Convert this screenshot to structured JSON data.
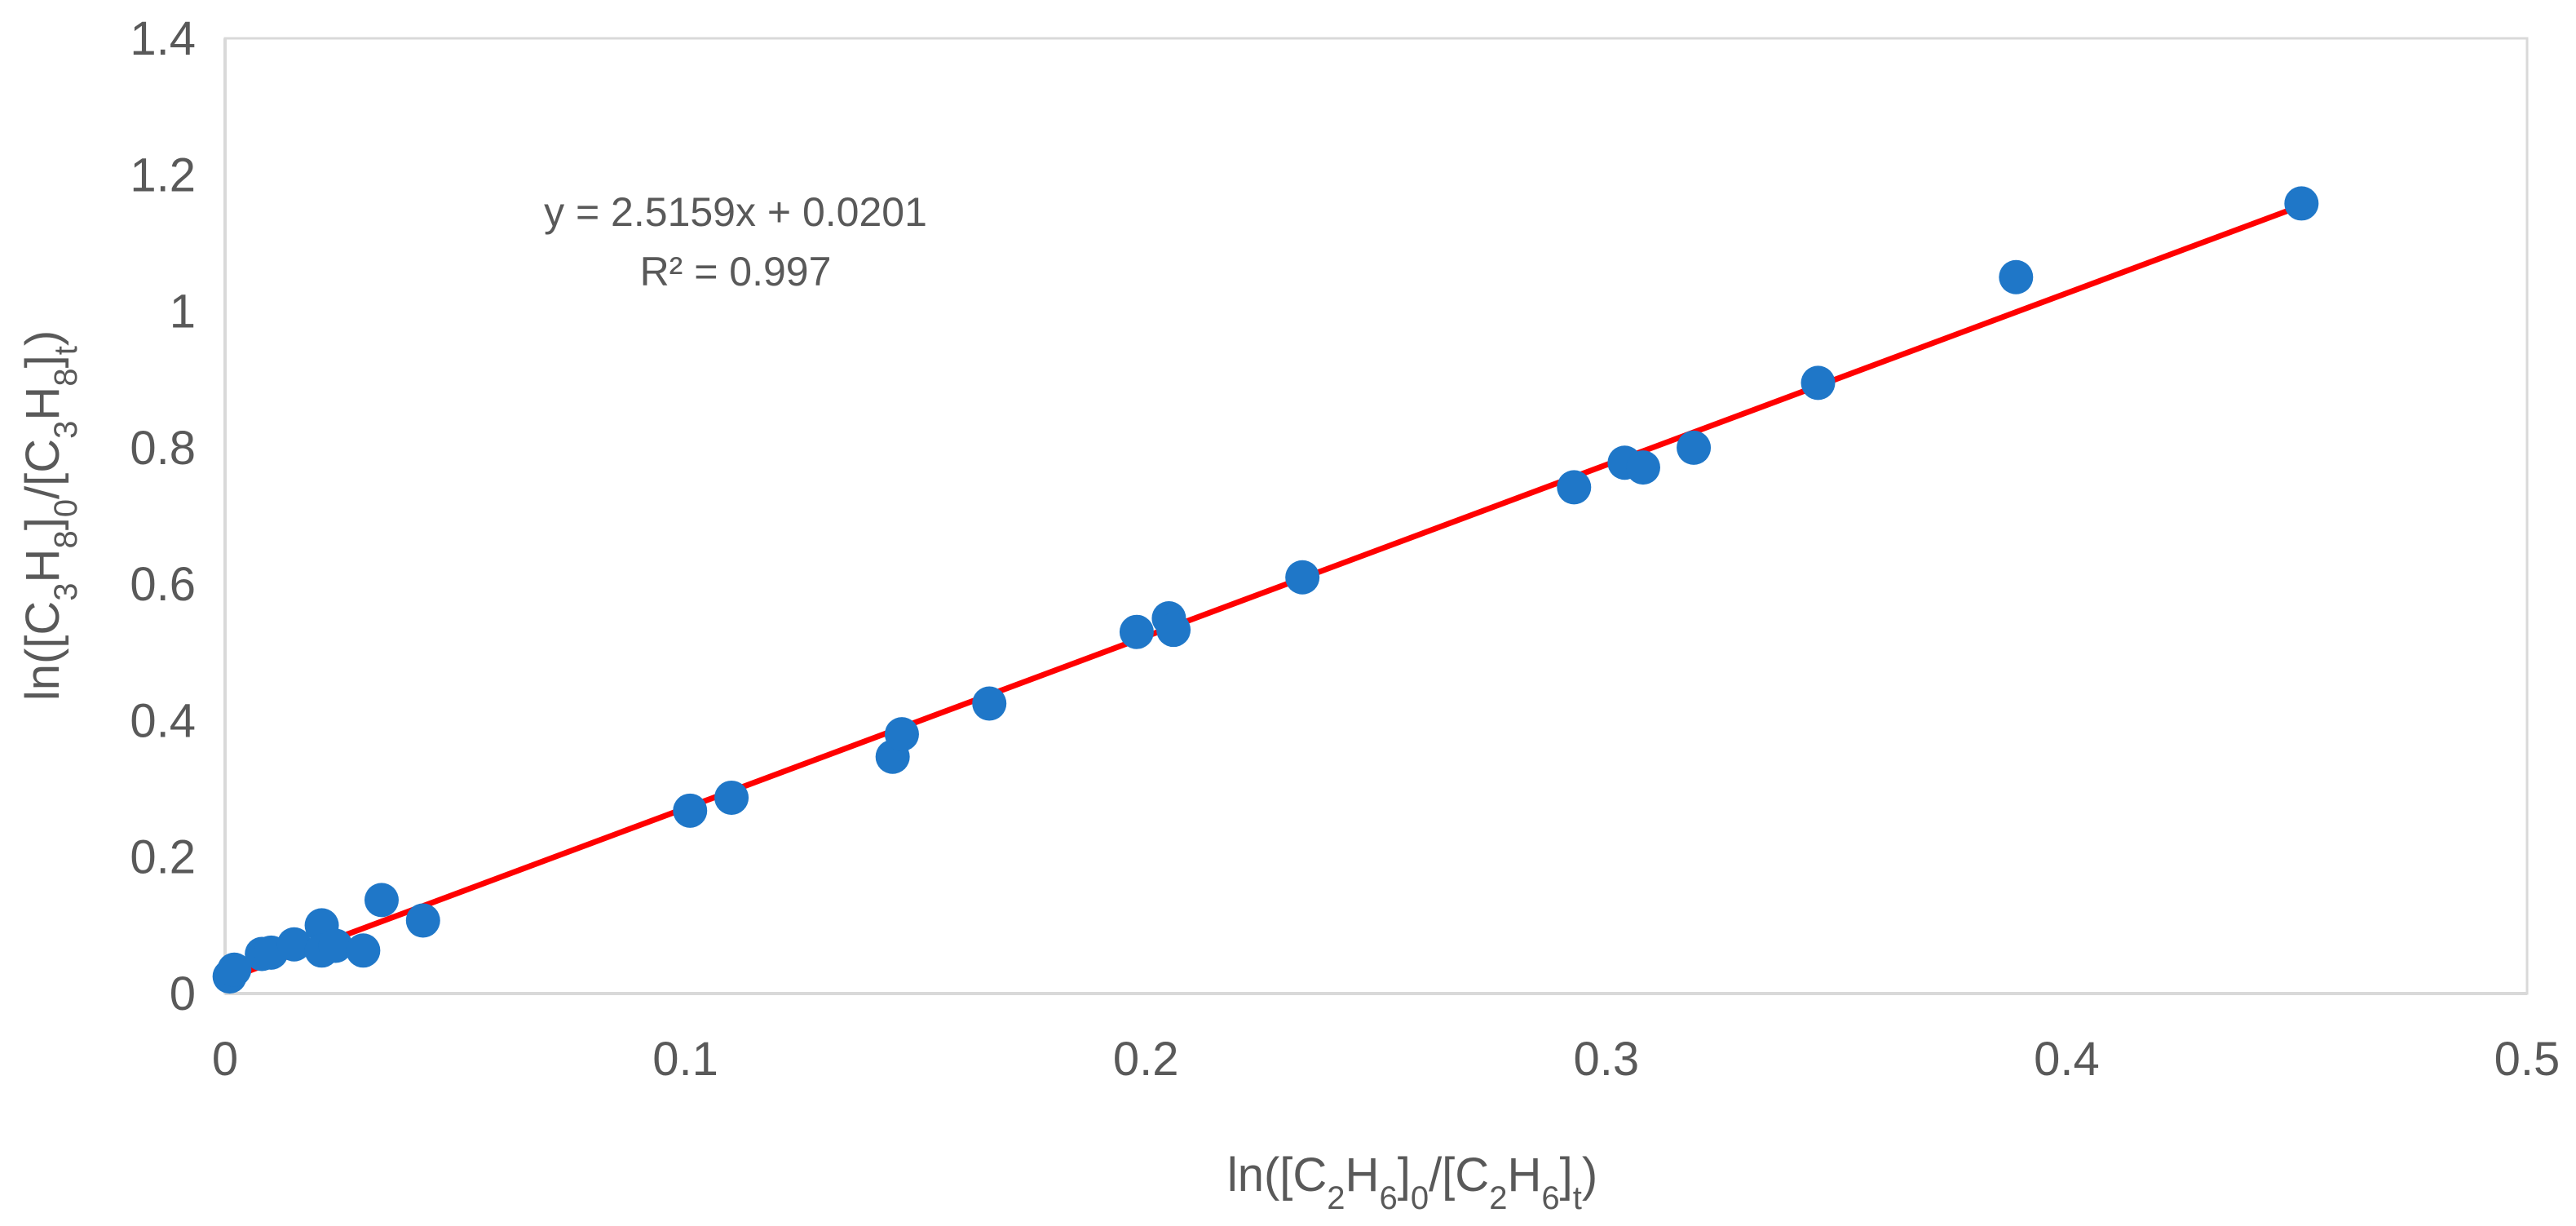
{
  "chart_data": {
    "type": "scatter",
    "title": "",
    "xlabel": {
      "main": "ln([C",
      "sub1": "2",
      "mid1": "H",
      "sub2": "6",
      "mid2": "]",
      "sub3": "0",
      "mid3": "/[C",
      "sub4": "2",
      "mid4": "H",
      "sub5": "6",
      "mid5": "]",
      "sub6": "t",
      "end": ")"
    },
    "ylabel": {
      "main": "ln([C",
      "sub1": "3",
      "mid1": "H",
      "sub2": "8",
      "mid2": "]",
      "sub3": "0",
      "mid3": "/[C",
      "sub4": "3",
      "mid4": "H",
      "sub5": "8",
      "mid5": "]",
      "sub6": "t",
      "end": ")"
    },
    "xlim": [
      0,
      0.5
    ],
    "ylim": [
      0,
      1.4
    ],
    "x_ticks": [
      "0",
      "0.1",
      "0.2",
      "0.3",
      "0.4",
      "0.5"
    ],
    "y_ticks": [
      "0",
      "0.2",
      "0.4",
      "0.6",
      "0.8",
      "1",
      "1.2",
      "1.4"
    ],
    "grid": false,
    "series": [
      {
        "marker_color": "#1f77c8",
        "points": [
          {
            "x": 0.001,
            "y": 0.025
          },
          {
            "x": 0.002,
            "y": 0.035
          },
          {
            "x": 0.008,
            "y": 0.058
          },
          {
            "x": 0.01,
            "y": 0.06
          },
          {
            "x": 0.015,
            "y": 0.072
          },
          {
            "x": 0.021,
            "y": 0.1
          },
          {
            "x": 0.021,
            "y": 0.063
          },
          {
            "x": 0.024,
            "y": 0.07
          },
          {
            "x": 0.03,
            "y": 0.063
          },
          {
            "x": 0.034,
            "y": 0.137
          },
          {
            "x": 0.043,
            "y": 0.107
          },
          {
            "x": 0.101,
            "y": 0.268
          },
          {
            "x": 0.11,
            "y": 0.287
          },
          {
            "x": 0.145,
            "y": 0.347
          },
          {
            "x": 0.147,
            "y": 0.38
          },
          {
            "x": 0.166,
            "y": 0.425
          },
          {
            "x": 0.198,
            "y": 0.53
          },
          {
            "x": 0.205,
            "y": 0.55
          },
          {
            "x": 0.206,
            "y": 0.533
          },
          {
            "x": 0.234,
            "y": 0.61
          },
          {
            "x": 0.293,
            "y": 0.742
          },
          {
            "x": 0.304,
            "y": 0.778
          },
          {
            "x": 0.308,
            "y": 0.771
          },
          {
            "x": 0.319,
            "y": 0.8
          },
          {
            "x": 0.346,
            "y": 0.895
          },
          {
            "x": 0.389,
            "y": 1.05
          },
          {
            "x": 0.451,
            "y": 1.158
          }
        ]
      }
    ],
    "trendline": {
      "slope": 2.5159,
      "intercept": 0.0201,
      "x_range": [
        0.001,
        0.451
      ],
      "color": "#ff0000",
      "equation": "y = 2.5159x + 0.0201",
      "r2_label": "R² = 0.997"
    }
  }
}
